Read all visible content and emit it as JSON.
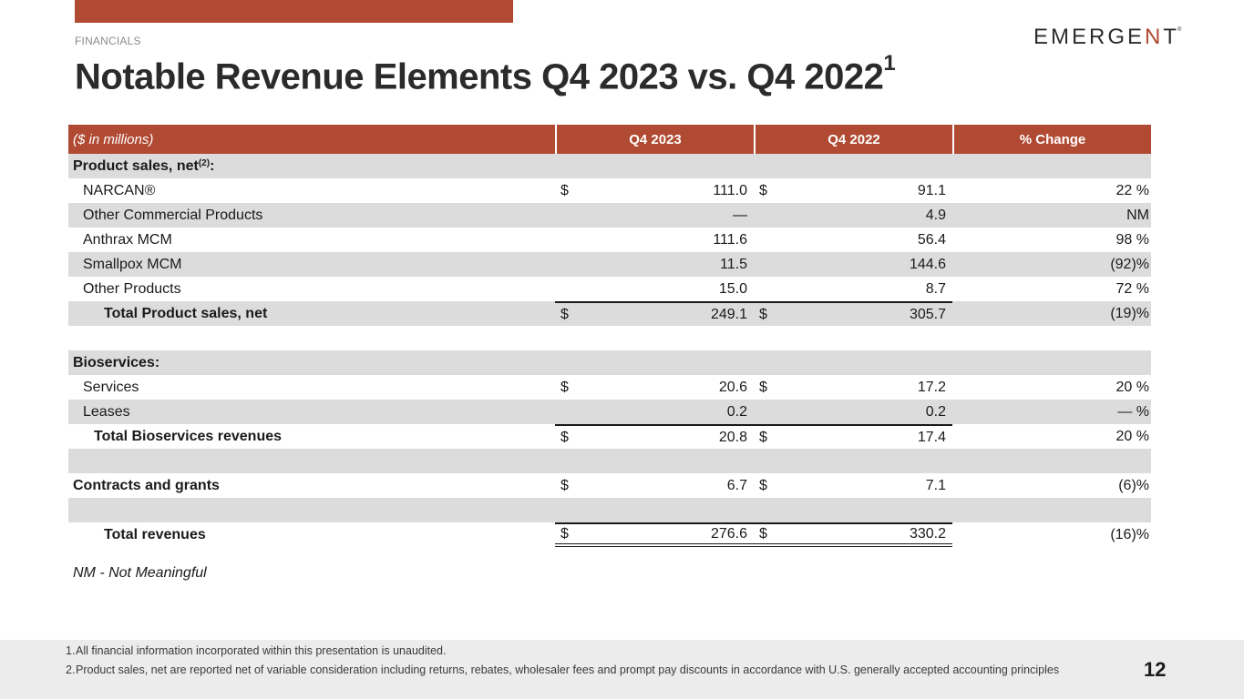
{
  "header": {
    "section": "FINANCIALS",
    "logo_text_pre": "EMERGE",
    "logo_text_accent": "N",
    "logo_text_post": "T",
    "logo_reg": "®",
    "title": "Notable Revenue Elements Q4 2023 vs. Q4 2022",
    "title_superscript": "1"
  },
  "colors": {
    "accent": "#b04a33",
    "shade": "#dcdcdc",
    "footer_bg": "#ececec"
  },
  "table": {
    "columns": [
      "($ in millions)",
      "Q4 2023",
      "Q4 2022",
      "% Change"
    ],
    "rows": [
      {
        "label": "Product sales, net ",
        "label_sup": "(2)",
        "label_suffix": ":",
        "v1_dollar": "",
        "v1": "",
        "v2_dollar": "",
        "v2": "",
        "pct": ""
      },
      {
        "label": "NARCAN®",
        "v1_dollar": "$",
        "v1": "111.0",
        "v2_dollar": "$",
        "v2": "91.1",
        "pct": "22 %"
      },
      {
        "label": "Other Commercial Products",
        "v1_dollar": "",
        "v1": "—",
        "v2_dollar": "",
        "v2": "4.9",
        "pct": "NM"
      },
      {
        "label": "Anthrax MCM",
        "v1_dollar": "",
        "v1": "111.6",
        "v2_dollar": "",
        "v2": "56.4",
        "pct": "98 %"
      },
      {
        "label": "Smallpox MCM",
        "v1_dollar": "",
        "v1": "11.5",
        "v2_dollar": "",
        "v2": "144.6",
        "pct": "(92)%"
      },
      {
        "label": "Other Products",
        "v1_dollar": "",
        "v1": "15.0",
        "v2_dollar": "",
        "v2": "8.7",
        "pct": "72 %"
      },
      {
        "label": "Total Product sales, net",
        "v1_dollar": "$",
        "v1": "249.1",
        "v2_dollar": "$",
        "v2": "305.7",
        "pct": "(19)%"
      },
      {
        "label": "",
        "v1_dollar": "",
        "v1": "",
        "v2_dollar": "",
        "v2": "",
        "pct": ""
      },
      {
        "label": "Bioservices:",
        "v1_dollar": "",
        "v1": "",
        "v2_dollar": "",
        "v2": "",
        "pct": ""
      },
      {
        "label": "Services",
        "v1_dollar": "$",
        "v1": "20.6",
        "v2_dollar": "$",
        "v2": "17.2",
        "pct": "20 %"
      },
      {
        "label": "Leases",
        "v1_dollar": "",
        "v1": "0.2",
        "v2_dollar": "",
        "v2": "0.2",
        "pct": "— %"
      },
      {
        "label": "Total Bioservices revenues",
        "v1_dollar": "$",
        "v1": "20.8",
        "v2_dollar": "$",
        "v2": "17.4",
        "pct": "20 %"
      },
      {
        "label": "",
        "v1_dollar": "",
        "v1": "",
        "v2_dollar": "",
        "v2": "",
        "pct": ""
      },
      {
        "label": "Contracts and grants",
        "v1_dollar": "$",
        "v1": "6.7",
        "v2_dollar": "$",
        "v2": "7.1",
        "pct": "(6)%"
      },
      {
        "label": "",
        "v1_dollar": "",
        "v1": "",
        "v2_dollar": "",
        "v2": "",
        "pct": ""
      },
      {
        "label": "Total revenues",
        "v1_dollar": "$",
        "v1": "276.6",
        "v2_dollar": "$",
        "v2": "330.2",
        "pct": "(16)%"
      }
    ]
  },
  "nm_note": "NM - Not Meaningful",
  "footer": {
    "footnotes": [
      {
        "num": "1.",
        "text": "All financial information incorporated within this presentation is unaudited."
      },
      {
        "num": "2.",
        "text": "Product sales, net are reported net of variable consideration including returns, rebates, wholesaler fees and prompt pay discounts in accordance with U.S. generally accepted accounting principles"
      }
    ],
    "page_number": "12"
  }
}
